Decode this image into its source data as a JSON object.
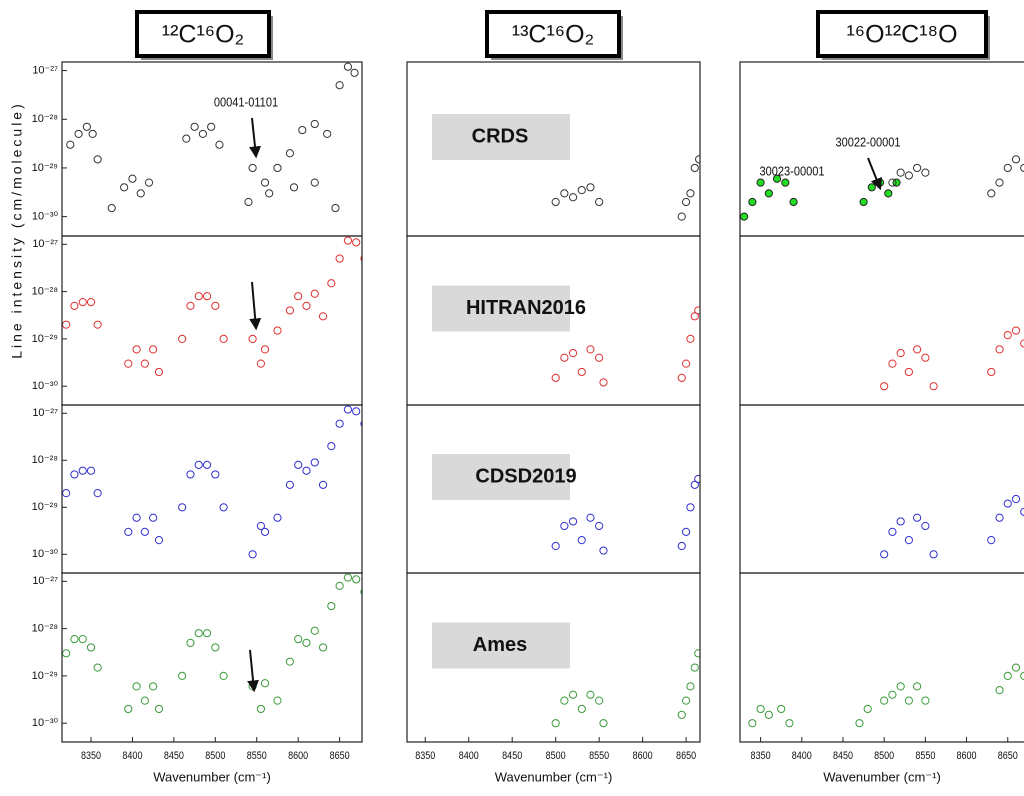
{
  "chart_data": [
    {
      "type": "scatter",
      "title": "¹²C¹⁶O₂",
      "ylabel": "Line intensity (cm/molecule)",
      "yscale": "log",
      "annotations": [
        {
          "text": "00041-01101"
        }
      ],
      "xlim": [
        8315,
        8677
      ],
      "ylim": [
        1.5e-27,
        4e-31
      ],
      "yticks": [
        {
          "value": 1e-30,
          "label": "10⁻³⁰"
        },
        {
          "value": 1e-29,
          "label": "10⁻²⁹"
        },
        {
          "value": 1e-28,
          "label": "10⁻²⁸"
        },
        {
          "value": 1e-27,
          "label": "10⁻²⁷"
        }
      ],
      "series": [
        {
          "color": "#333333",
          "fill": "none",
          "x": [
            8325,
            8335,
            8345,
            8352,
            8358,
            8375,
            8390,
            8400,
            8410,
            8420,
            8465,
            8475,
            8485,
            8495,
            8505,
            8545,
            8560,
            8575,
            8590,
            8605,
            8620,
            8635,
            8650,
            8660,
            8668,
            8540,
            8565,
            8595,
            8620,
            8645
          ],
          "values": [
            3e-29,
            5e-29,
            7e-29,
            5e-29,
            1.5e-29,
            1.5e-30,
            4e-30,
            6e-30,
            3e-30,
            5e-30,
            4e-29,
            7e-29,
            5e-29,
            7e-29,
            3e-29,
            1e-29,
            5e-30,
            1e-29,
            2e-29,
            6e-29,
            8e-29,
            5e-29,
            5e-28,
            1.2e-27,
            9e-28,
            2e-30,
            3e-30,
            4e-30,
            5e-30,
            1.5e-30
          ]
        }
      ]
    },
    {
      "type": "scatter",
      "title": "¹³C¹⁶O₂",
      "label": "CRDS",
      "yscale": "log",
      "xlim": [
        8329,
        8666
      ],
      "ylim": [
        1.5e-27,
        4e-31
      ],
      "series": [
        {
          "color": "#333333",
          "fill": "none",
          "x": [
            8500,
            8510,
            8520,
            8530,
            8540,
            8550,
            8645,
            8650,
            8655,
            8660,
            8665
          ],
          "values": [
            2e-30,
            3e-30,
            2.5e-30,
            3.5e-30,
            4e-30,
            2e-30,
            1e-30,
            2e-30,
            3e-30,
            1e-29,
            1.5e-29
          ]
        }
      ]
    },
    {
      "type": "scatter",
      "title": "¹⁶O¹²C¹⁸O",
      "yscale": "log",
      "annotations": [
        {
          "text": "30022-00001"
        },
        {
          "text": "30023-00001"
        }
      ],
      "xlim": [
        8325,
        8677
      ],
      "ylim": [
        1.5e-27,
        4e-31
      ],
      "series": [
        {
          "color": "#222222",
          "fill": "#22dd22",
          "x": [
            8330,
            8340,
            8350,
            8360,
            8370,
            8380,
            8390,
            8475,
            8485,
            8495,
            8505,
            8515
          ],
          "values": [
            1e-30,
            2e-30,
            5e-30,
            3e-30,
            6e-30,
            5e-30,
            2e-30,
            2e-30,
            4e-30,
            5e-30,
            3e-30,
            5e-30
          ]
        },
        {
          "color": "#333333",
          "fill": "none",
          "x": [
            8510,
            8520,
            8530,
            8540,
            8550,
            8630,
            8640,
            8650,
            8660,
            8670
          ],
          "values": [
            5e-30,
            8e-30,
            7e-30,
            1e-29,
            8e-30,
            3e-30,
            5e-30,
            1e-29,
            1.5e-29,
            1e-29
          ]
        }
      ]
    },
    {
      "type": "scatter",
      "yscale": "log",
      "xlim": [
        8315,
        8677
      ],
      "ylim": [
        1.5e-27,
        4e-31
      ],
      "yticks": [
        {
          "value": 1e-30,
          "label": "10⁻³⁰"
        },
        {
          "value": 1e-29,
          "label": "10⁻²⁹"
        },
        {
          "value": 1e-28,
          "label": "10⁻²⁸"
        },
        {
          "value": 1e-27,
          "label": "10⁻²⁷"
        }
      ],
      "series": [
        {
          "color": "#e03030",
          "fill": "none",
          "x": [
            8320,
            8330,
            8340,
            8350,
            8358,
            8395,
            8405,
            8415,
            8425,
            8432,
            8460,
            8470,
            8480,
            8490,
            8500,
            8510,
            8545,
            8560,
            8575,
            8590,
            8600,
            8610,
            8620,
            8630,
            8640,
            8650,
            8660,
            8670,
            8680,
            8555
          ],
          "values": [
            2e-29,
            5e-29,
            6e-29,
            6e-29,
            2e-29,
            3e-30,
            6e-30,
            3e-30,
            6e-30,
            2e-30,
            1e-29,
            5e-29,
            8e-29,
            8e-29,
            5e-29,
            1e-29,
            1e-29,
            6e-30,
            1.5e-29,
            4e-29,
            8e-29,
            5e-29,
            9e-29,
            3e-29,
            1.5e-28,
            5e-28,
            1.2e-27,
            1.1e-27,
            5e-28,
            3e-30
          ]
        }
      ]
    },
    {
      "type": "scatter",
      "label": "HITRAN2016",
      "yscale": "log",
      "xlim": [
        8329,
        8666
      ],
      "ylim": [
        1.5e-27,
        4e-31
      ],
      "series": [
        {
          "color": "#e03030",
          "fill": "none",
          "x": [
            8500,
            8510,
            8520,
            8530,
            8540,
            8550,
            8555,
            8645,
            8650,
            8655,
            8660,
            8664
          ],
          "values": [
            1.5e-30,
            4e-30,
            5e-30,
            2e-30,
            6e-30,
            4e-30,
            1.2e-30,
            1.5e-30,
            3e-30,
            1e-29,
            3e-29,
            4e-29
          ]
        }
      ]
    },
    {
      "type": "scatter",
      "yscale": "log",
      "xlim": [
        8325,
        8677
      ],
      "ylim": [
        1.5e-27,
        4e-31
      ],
      "series": [
        {
          "color": "#e03030",
          "fill": "none",
          "x": [
            8500,
            8510,
            8520,
            8530,
            8540,
            8550,
            8560,
            8630,
            8640,
            8650,
            8660,
            8670
          ],
          "values": [
            1e-30,
            3e-30,
            5e-30,
            2e-30,
            6e-30,
            4e-30,
            1e-30,
            2e-30,
            6e-30,
            1.2e-29,
            1.5e-29,
            8e-30
          ]
        }
      ]
    },
    {
      "type": "scatter",
      "yscale": "log",
      "xlim": [
        8315,
        8677
      ],
      "ylim": [
        1.5e-27,
        4e-31
      ],
      "yticks": [
        {
          "value": 1e-30,
          "label": "10⁻³⁰"
        },
        {
          "value": 1e-29,
          "label": "10⁻²⁹"
        },
        {
          "value": 1e-28,
          "label": "10⁻²⁸"
        },
        {
          "value": 1e-27,
          "label": "10⁻²⁷"
        }
      ],
      "series": [
        {
          "color": "#3030d0",
          "fill": "none",
          "x": [
            8320,
            8330,
            8340,
            8350,
            8358,
            8395,
            8405,
            8415,
            8425,
            8432,
            8460,
            8470,
            8480,
            8490,
            8500,
            8510,
            8545,
            8560,
            8575,
            8590,
            8600,
            8610,
            8620,
            8630,
            8640,
            8650,
            8660,
            8670,
            8680,
            8555
          ],
          "values": [
            2e-29,
            5e-29,
            6e-29,
            6e-29,
            2e-29,
            3e-30,
            6e-30,
            3e-30,
            6e-30,
            2e-30,
            1e-29,
            5e-29,
            8e-29,
            8e-29,
            5e-29,
            1e-29,
            1e-30,
            3e-30,
            6e-30,
            3e-29,
            8e-29,
            6e-29,
            9e-29,
            3e-29,
            2e-28,
            6e-28,
            1.2e-27,
            1.1e-27,
            6e-28,
            4e-30
          ]
        }
      ]
    },
    {
      "type": "scatter",
      "label": "CDSD2019",
      "yscale": "log",
      "xlim": [
        8329,
        8666
      ],
      "ylim": [
        1.5e-27,
        4e-31
      ],
      "series": [
        {
          "color": "#3030d0",
          "fill": "none",
          "x": [
            8500,
            8510,
            8520,
            8530,
            8540,
            8550,
            8555,
            8645,
            8650,
            8655,
            8660,
            8664
          ],
          "values": [
            1.5e-30,
            4e-30,
            5e-30,
            2e-30,
            6e-30,
            4e-30,
            1.2e-30,
            1.5e-30,
            3e-30,
            1e-29,
            3e-29,
            4e-29
          ]
        }
      ]
    },
    {
      "type": "scatter",
      "yscale": "log",
      "xlim": [
        8325,
        8677
      ],
      "ylim": [
        1.5e-27,
        4e-31
      ],
      "series": [
        {
          "color": "#3030d0",
          "fill": "none",
          "x": [
            8500,
            8510,
            8520,
            8530,
            8540,
            8550,
            8560,
            8630,
            8640,
            8650,
            8660,
            8670
          ],
          "values": [
            1e-30,
            3e-30,
            5e-30,
            2e-30,
            6e-30,
            4e-30,
            1e-30,
            2e-30,
            6e-30,
            1.2e-29,
            1.5e-29,
            8e-30
          ]
        }
      ]
    },
    {
      "type": "scatter",
      "xlabel": "Wavenumber (cm⁻¹)",
      "yscale": "log",
      "xlim": [
        8315,
        8677
      ],
      "ylim": [
        1.5e-27,
        4e-31
      ],
      "xticks": [
        8350,
        8400,
        8450,
        8500,
        8550,
        8600,
        8650
      ],
      "yticks": [
        {
          "value": 1e-30,
          "label": "10⁻³⁰"
        },
        {
          "value": 1e-29,
          "label": "10⁻²⁹"
        },
        {
          "value": 1e-28,
          "label": "10⁻²⁸"
        },
        {
          "value": 1e-27,
          "label": "10⁻²⁷"
        }
      ],
      "series": [
        {
          "color": "#3a9a3a",
          "fill": "none",
          "x": [
            8320,
            8330,
            8340,
            8350,
            8358,
            8395,
            8405,
            8415,
            8425,
            8432,
            8460,
            8470,
            8480,
            8490,
            8500,
            8510,
            8545,
            8560,
            8575,
            8590,
            8600,
            8610,
            8620,
            8630,
            8640,
            8650,
            8660,
            8670,
            8680,
            8555
          ],
          "values": [
            3e-29,
            6e-29,
            6e-29,
            4e-29,
            1.5e-29,
            2e-30,
            6e-30,
            3e-30,
            6e-30,
            2e-30,
            1e-29,
            5e-29,
            8e-29,
            8e-29,
            4e-29,
            1e-29,
            6e-30,
            7e-30,
            3e-30,
            2e-29,
            6e-29,
            5e-29,
            9e-29,
            4e-29,
            3e-28,
            8e-28,
            1.2e-27,
            1.1e-27,
            6e-28,
            2e-30
          ]
        }
      ]
    },
    {
      "type": "scatter",
      "label": "Ames",
      "xlabel": "Wavenumber (cm⁻¹)",
      "yscale": "log",
      "xlim": [
        8329,
        8666
      ],
      "ylim": [
        1.5e-27,
        4e-31
      ],
      "xticks": [
        8350,
        8400,
        8450,
        8500,
        8550,
        8600,
        8650
      ],
      "series": [
        {
          "color": "#3a9a3a",
          "fill": "none",
          "x": [
            8500,
            8510,
            8520,
            8530,
            8540,
            8550,
            8555,
            8645,
            8650,
            8655,
            8660,
            8664
          ],
          "values": [
            1e-30,
            3e-30,
            4e-30,
            2e-30,
            4e-30,
            3e-30,
            1e-30,
            1.5e-30,
            3e-30,
            6e-30,
            1.5e-29,
            3e-29
          ]
        }
      ]
    },
    {
      "type": "scatter",
      "xlabel": "Wavenumber (cm⁻¹)",
      "yscale": "log",
      "xlim": [
        8325,
        8677
      ],
      "ylim": [
        1.5e-27,
        4e-31
      ],
      "xticks": [
        8350,
        8400,
        8450,
        8500,
        8550,
        8600,
        8650
      ],
      "series": [
        {
          "color": "#3a9a3a",
          "fill": "none",
          "x": [
            8340,
            8350,
            8360,
            8375,
            8385,
            8470,
            8480,
            8500,
            8510,
            8520,
            8530,
            8540,
            8550,
            8640,
            8650,
            8660,
            8670
          ],
          "values": [
            1e-30,
            2e-30,
            1.5e-30,
            2e-30,
            1e-30,
            1e-30,
            2e-30,
            3e-30,
            4e-30,
            6e-30,
            3e-30,
            6e-30,
            3e-30,
            5e-30,
            1e-29,
            1.5e-29,
            1e-29
          ]
        }
      ]
    }
  ]
}
